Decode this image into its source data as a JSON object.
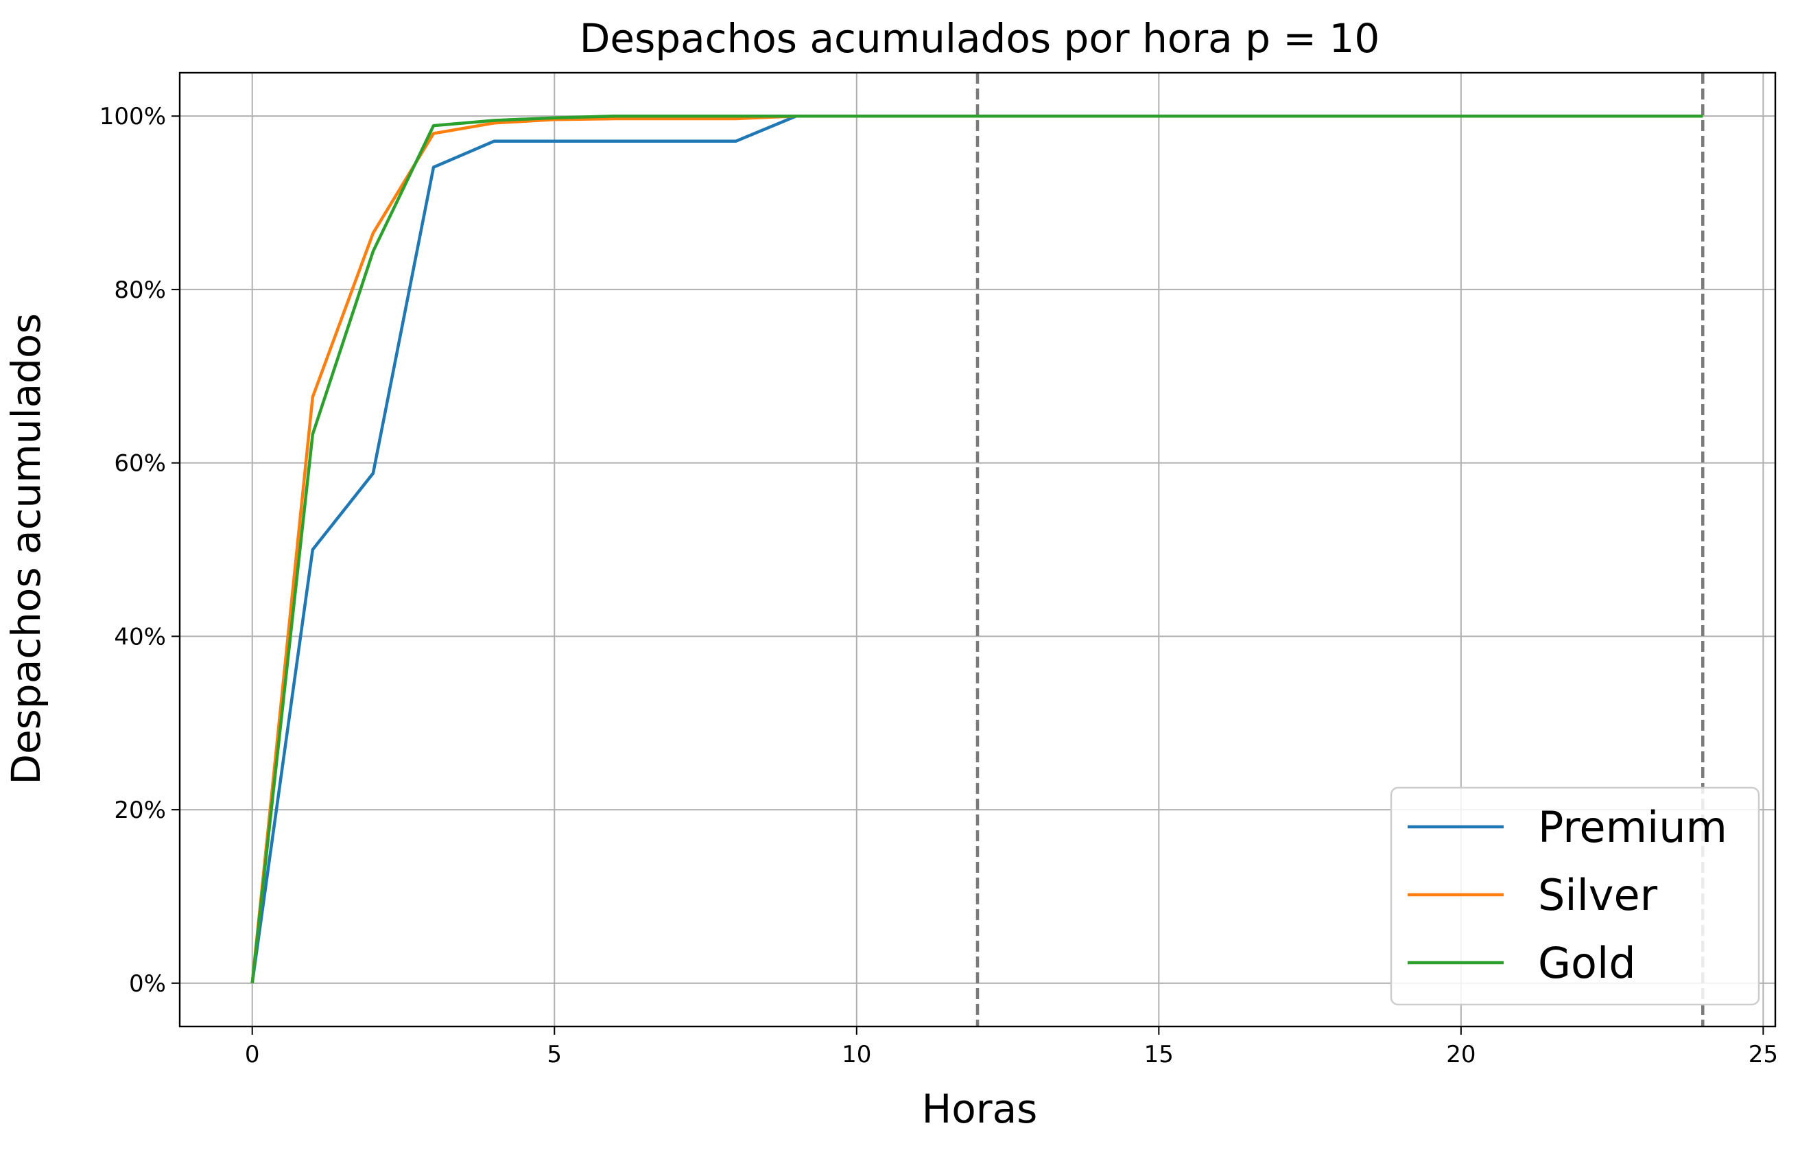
{
  "chart_data": {
    "type": "line",
    "title": "Despachos acumulados por hora p = 10",
    "xlabel": "Horas",
    "ylabel": "Despachos acumulados",
    "xlim": [
      -1.2,
      25.2
    ],
    "ylim": [
      -5,
      105
    ],
    "xticks": [
      0,
      5,
      10,
      15,
      20,
      25
    ],
    "yticks": [
      0,
      20,
      40,
      60,
      80,
      100
    ],
    "ytick_format": "percent",
    "grid": true,
    "legend_position": "bottom-right",
    "vlines": [
      {
        "x": 12,
        "style": "dashed",
        "color": "#7a7a7a"
      },
      {
        "x": 24,
        "style": "dashed",
        "color": "#7a7a7a"
      }
    ],
    "x": [
      0,
      1,
      2,
      3,
      4,
      5,
      6,
      7,
      8,
      9,
      10,
      11,
      12,
      13,
      14,
      15,
      16,
      17,
      18,
      19,
      20,
      21,
      22,
      23,
      24
    ],
    "series": [
      {
        "name": "Premium",
        "color": "#1f77b4",
        "values": [
          0,
          50,
          58.8,
          94.1,
          97.1,
          97.1,
          97.1,
          97.1,
          97.1,
          100,
          100,
          100,
          100,
          100,
          100,
          100,
          100,
          100,
          100,
          100,
          100,
          100,
          100,
          100,
          100
        ]
      },
      {
        "name": "Silver",
        "color": "#ff7f0e",
        "values": [
          0,
          67.6,
          86.5,
          98.0,
          99.2,
          99.6,
          99.7,
          99.7,
          99.7,
          100,
          100,
          100,
          100,
          100,
          100,
          100,
          100,
          100,
          100,
          100,
          100,
          100,
          100,
          100,
          100
        ]
      },
      {
        "name": "Gold",
        "color": "#2ca02c",
        "values": [
          0,
          63.3,
          84.4,
          98.9,
          99.5,
          99.8,
          100,
          100,
          100,
          100,
          100,
          100,
          100,
          100,
          100,
          100,
          100,
          100,
          100,
          100,
          100,
          100,
          100,
          100,
          100
        ]
      }
    ]
  }
}
